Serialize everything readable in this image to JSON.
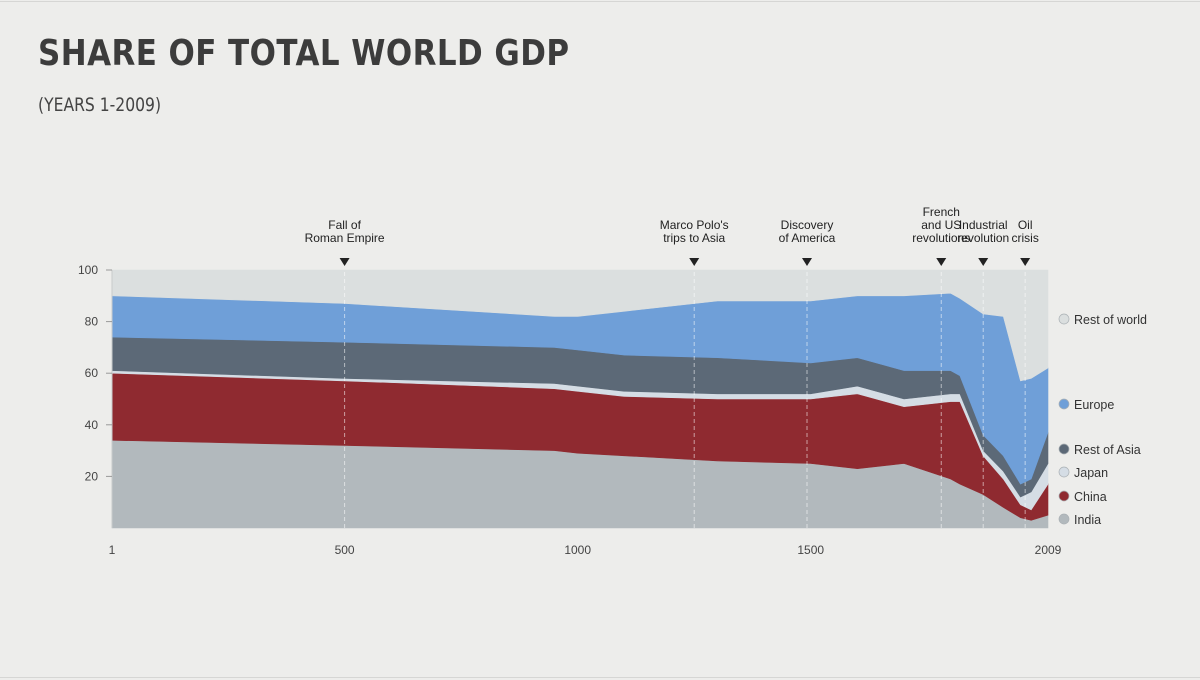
{
  "title": "SHARE OF TOTAL WORLD GDP",
  "subtitle": "(YEARS 1-2009)",
  "chart_data": {
    "type": "area",
    "stacked": true,
    "x": [
      1,
      500,
      950,
      1000,
      1100,
      1300,
      1500,
      1600,
      1700,
      1800,
      1820,
      1870,
      1913,
      1950,
      1973,
      2009
    ],
    "xticks": [
      "1",
      "500",
      "1000",
      "1500",
      "2009"
    ],
    "xtick_values": [
      1,
      500,
      1000,
      1500,
      2009
    ],
    "yticks": [
      "20",
      "40",
      "60",
      "80",
      "100"
    ],
    "ytick_values": [
      20,
      40,
      60,
      80,
      100
    ],
    "xlim": [
      1,
      2009
    ],
    "ylim": [
      0,
      100
    ],
    "grid": false,
    "legend_position": "right",
    "series": [
      {
        "name": "India",
        "color": "#b2b9bd",
        "values": [
          34,
          32,
          30,
          29,
          28,
          26,
          25,
          23,
          25,
          19,
          17,
          13,
          8,
          4,
          3,
          5
        ]
      },
      {
        "name": "China",
        "color": "#8f2a30",
        "values": [
          26,
          25,
          24,
          24,
          23,
          24,
          25,
          29,
          22,
          30,
          32,
          15,
          11,
          5,
          4,
          12
        ]
      },
      {
        "name": "Japan",
        "color": "#d5dde5",
        "values": [
          1,
          1,
          2,
          2,
          2,
          2,
          2,
          3,
          3,
          3,
          3,
          2,
          3,
          3,
          7,
          8
        ]
      },
      {
        "name": "Rest of Asia",
        "color": "#5c6977",
        "values": [
          13,
          14,
          14,
          14,
          14,
          14,
          12,
          11,
          11,
          9,
          7,
          6,
          6,
          5,
          5,
          12
        ]
      },
      {
        "name": "Europe",
        "color": "#6f9fd8",
        "values": [
          16,
          15,
          12,
          13,
          17,
          22,
          24,
          24,
          29,
          30,
          30,
          47,
          54,
          40,
          39,
          25
        ]
      },
      {
        "name": "Rest of world",
        "color": "#dbdfdf",
        "values": [
          10,
          13,
          18,
          18,
          16,
          12,
          12,
          10,
          10,
          9,
          11,
          17,
          18,
          43,
          42,
          38
        ]
      }
    ],
    "annotations": [
      {
        "lines": [
          "Fall of",
          "Roman Empire"
        ],
        "year": 500
      },
      {
        "lines": [
          "Marco Polo's",
          "trips to Asia"
        ],
        "year": 1250
      },
      {
        "lines": [
          "Discovery",
          "of America"
        ],
        "year": 1492
      },
      {
        "lines": [
          "French",
          "and US",
          "revolutions"
        ],
        "year": 1780
      },
      {
        "lines": [
          "Industrial",
          "revolution"
        ],
        "year": 1870
      },
      {
        "lines": [
          "Oil",
          "crisis"
        ],
        "year": 1960
      }
    ]
  }
}
